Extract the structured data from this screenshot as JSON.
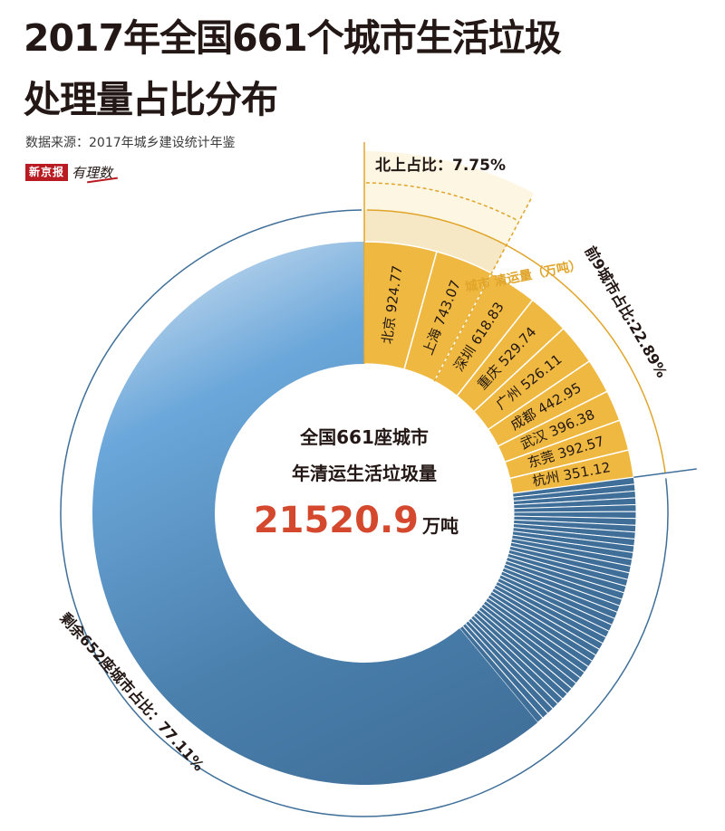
{
  "title_line1": "2017年全国661个城市生活垃圾",
  "title_line2": "处理量占比分布",
  "source": "数据来源：2017年城乡建设统计年鉴",
  "brand": {
    "name": "新京报",
    "sub": "有理数"
  },
  "center": {
    "line1": "全国661座城市",
    "line2": "年清运生活垃圾量",
    "total_value": "21520.9",
    "total_unit": "万吨"
  },
  "annotations": {
    "beijing_shanghai": "北上占比：7.75%",
    "top9": "前9城市占比:22.89%",
    "rest": "剩余652座城市占比：77.11%",
    "header_city": "城市",
    "header_amount": "清运量（万吨）"
  },
  "colors": {
    "gold": "#efb840",
    "gold_dark": "#e0a52a",
    "steel": "#3f6f99",
    "light_blue": "#6ba7da",
    "pale": "#e1ebf5",
    "cream": "#fdf6e3",
    "title_red": "#d4492d"
  },
  "chart_data": {
    "type": "pie",
    "total": 21520.9,
    "total_unit": "万吨",
    "top_cities": [
      {
        "city": "北京",
        "value": 924.77,
        "label": "924.77"
      },
      {
        "city": "上海",
        "value": 743.07,
        "label": "743.07"
      },
      {
        "city": "深圳",
        "value": 618.83,
        "label": "618.83"
      },
      {
        "city": "重庆",
        "value": 529.74,
        "label": "529.74"
      },
      {
        "city": "广州",
        "value": 526.11,
        "label": "526.11"
      },
      {
        "city": "成都",
        "value": 442.95,
        "label": "442.95"
      },
      {
        "city": "武汉",
        "value": 396.38,
        "label": "396.38"
      },
      {
        "city": "东莞",
        "value": 392.57,
        "label": "392.57"
      },
      {
        "city": "杭州",
        "value": 351.12,
        "label": "351.12"
      }
    ],
    "shares": {
      "beijing_shanghai_pct": 7.75,
      "top9_pct": 22.89,
      "rest_pct": 77.11
    }
  }
}
